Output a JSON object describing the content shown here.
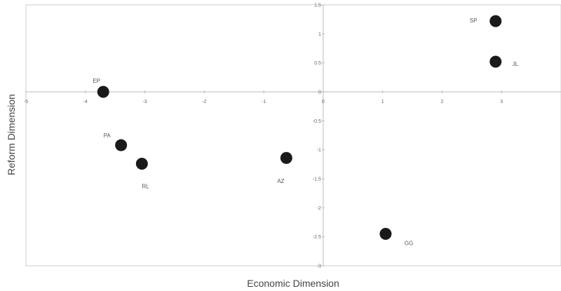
{
  "chart_data": {
    "type": "scatter",
    "title": "",
    "xlabel": "Economic Dimension",
    "ylabel": "Reform Dimension",
    "xlim": [
      -5,
      4
    ],
    "ylim": [
      -3,
      1.5
    ],
    "x_ticks": [
      "-5",
      "-4",
      "-3",
      "-2",
      "-1",
      "0",
      "1",
      "2",
      "3"
    ],
    "y_ticks": [
      "1.5",
      "1",
      "0.5",
      "0",
      "-0.5",
      "-1",
      "-1.5",
      "-2",
      "-2.5",
      "-3"
    ],
    "grid": false,
    "colors": {
      "marker": "#1a1a1a",
      "axis": "#bbbbbb",
      "frame": "#cccccc"
    },
    "points": [
      {
        "label": "SP",
        "x": 2.9,
        "y": 1.22
      },
      {
        "label": "JL",
        "x": 2.9,
        "y": 0.52
      },
      {
        "label": "EP",
        "x": -3.7,
        "y": 0.0
      },
      {
        "label": "PA",
        "x": -3.4,
        "y": -0.92
      },
      {
        "label": "RL",
        "x": -3.05,
        "y": -1.24
      },
      {
        "label": "AZ",
        "x": -0.62,
        "y": -1.14
      },
      {
        "label": "GG",
        "x": 1.05,
        "y": -2.45
      }
    ]
  }
}
